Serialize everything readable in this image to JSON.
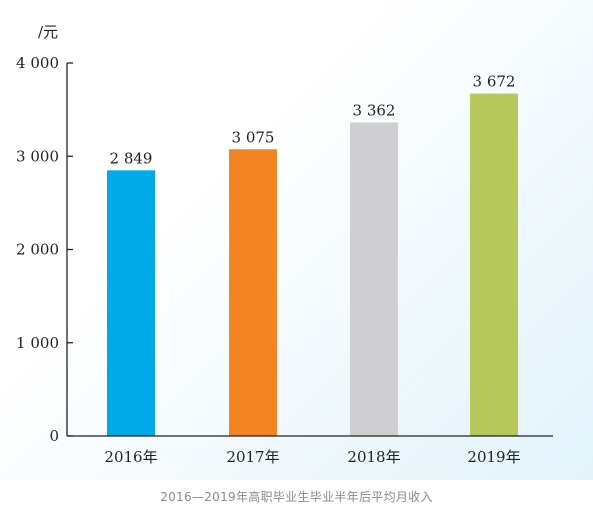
{
  "chart_data": {
    "type": "bar",
    "ylabel": "/元",
    "categories": [
      "2016年",
      "2017年",
      "2018年",
      "2019年"
    ],
    "values": [
      2849,
      3075,
      3362,
      3672
    ],
    "value_labels": [
      "2 849",
      "3 075",
      "3 362",
      "3 672"
    ],
    "colors": [
      "#00a9e8",
      "#f28421",
      "#cfcfd1",
      "#b7c95d"
    ],
    "ylim": [
      0,
      4000
    ],
    "yticks": [
      {
        "value": 0,
        "label": "0"
      },
      {
        "value": 1000,
        "label": "1 000"
      },
      {
        "value": 2000,
        "label": "2 000"
      },
      {
        "value": 3000,
        "label": "3 000"
      },
      {
        "value": 4000,
        "label": "4 000"
      }
    ],
    "grid": false,
    "legend": "none"
  },
  "caption": "2016—2019年高职毕业生毕业半年后平均月收入"
}
